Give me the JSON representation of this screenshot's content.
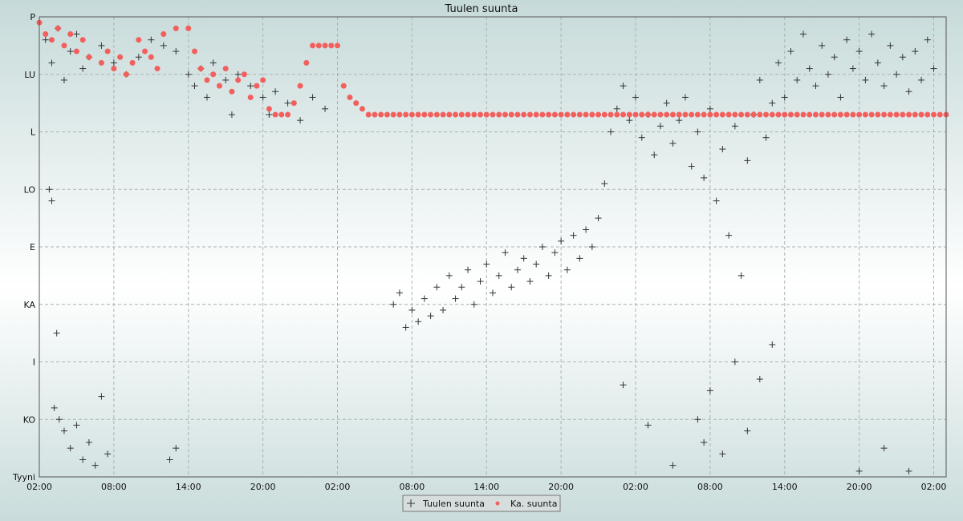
{
  "chart_data": {
    "type": "scatter",
    "title": "Tuulen suunta",
    "y_categories": [
      "Tyyni",
      "KO",
      "I",
      "KA",
      "E",
      "LO",
      "L",
      "LU",
      "P"
    ],
    "x_tick_labels": [
      "02:00",
      "08:00",
      "14:00",
      "20:00",
      "02:00",
      "08:00",
      "14:00",
      "20:00",
      "02:00",
      "08:00",
      "14:00",
      "20:00",
      "02:00"
    ],
    "x_tick_hours": [
      0,
      6,
      12,
      18,
      24,
      30,
      36,
      42,
      48,
      54,
      60,
      66,
      72
    ],
    "x_range_hours": [
      0,
      73
    ],
    "y_range": [
      0,
      8
    ],
    "grid": true,
    "legend_position": "bottom-center",
    "series": [
      {
        "name": "Tuulen suunta",
        "marker": "cross",
        "color": "#333333",
        "points": [
          [
            0.5,
            7.6
          ],
          [
            1,
            7.2
          ],
          [
            1.5,
            7.8
          ],
          [
            2,
            6.9
          ],
          [
            2.5,
            7.4
          ],
          [
            3,
            7.7
          ],
          [
            3.5,
            7.1
          ],
          [
            4,
            7.3
          ],
          [
            5,
            7.5
          ],
          [
            6,
            7.2
          ],
          [
            7,
            7.0
          ],
          [
            8,
            7.3
          ],
          [
            9,
            7.6
          ],
          [
            10,
            7.5
          ],
          [
            11,
            7.4
          ],
          [
            12,
            7.0
          ],
          [
            12.5,
            6.8
          ],
          [
            13,
            7.1
          ],
          [
            13.5,
            6.6
          ],
          [
            14,
            7.2
          ],
          [
            15,
            6.9
          ],
          [
            15.5,
            6.3
          ],
          [
            16,
            7.0
          ],
          [
            17,
            6.8
          ],
          [
            18,
            6.6
          ],
          [
            18.5,
            6.3
          ],
          [
            19,
            6.7
          ],
          [
            20,
            6.5
          ],
          [
            21,
            6.2
          ],
          [
            22,
            6.6
          ],
          [
            23,
            6.4
          ],
          [
            0.8,
            5.0
          ],
          [
            1,
            4.8
          ],
          [
            1.4,
            2.5
          ],
          [
            1.2,
            1.2
          ],
          [
            1.6,
            1.0
          ],
          [
            2,
            0.8
          ],
          [
            2.5,
            0.5
          ],
          [
            3,
            0.9
          ],
          [
            3.5,
            0.3
          ],
          [
            4,
            0.6
          ],
          [
            4.5,
            0.2
          ],
          [
            5,
            1.4
          ],
          [
            5.5,
            0.4
          ],
          [
            10.5,
            0.3
          ],
          [
            11,
            0.5
          ],
          [
            28.5,
            3.0
          ],
          [
            29,
            3.2
          ],
          [
            29.5,
            2.6
          ],
          [
            30,
            2.9
          ],
          [
            30.5,
            2.7
          ],
          [
            31,
            3.1
          ],
          [
            31.5,
            2.8
          ],
          [
            32,
            3.3
          ],
          [
            32.5,
            2.9
          ],
          [
            33,
            3.5
          ],
          [
            33.5,
            3.1
          ],
          [
            34,
            3.3
          ],
          [
            34.5,
            3.6
          ],
          [
            35,
            3.0
          ],
          [
            35.5,
            3.4
          ],
          [
            36,
            3.7
          ],
          [
            36.5,
            3.2
          ],
          [
            37,
            3.5
          ],
          [
            37.5,
            3.9
          ],
          [
            38,
            3.3
          ],
          [
            38.5,
            3.6
          ],
          [
            39,
            3.8
          ],
          [
            39.5,
            3.4
          ],
          [
            40,
            3.7
          ],
          [
            40.5,
            4.0
          ],
          [
            41,
            3.5
          ],
          [
            41.5,
            3.9
          ],
          [
            42,
            4.1
          ],
          [
            42.5,
            3.6
          ],
          [
            43,
            4.2
          ],
          [
            43.5,
            3.8
          ],
          [
            44,
            4.3
          ],
          [
            44.5,
            4.0
          ],
          [
            45,
            4.5
          ],
          [
            45.5,
            5.1
          ],
          [
            46,
            6.0
          ],
          [
            46.5,
            6.4
          ],
          [
            47,
            6.8
          ],
          [
            47.5,
            6.2
          ],
          [
            48,
            6.6
          ],
          [
            48.5,
            5.9
          ],
          [
            49,
            6.3
          ],
          [
            49.5,
            5.6
          ],
          [
            50,
            6.1
          ],
          [
            50.5,
            6.5
          ],
          [
            51,
            5.8
          ],
          [
            51.5,
            6.2
          ],
          [
            52,
            6.6
          ],
          [
            52.5,
            5.4
          ],
          [
            53,
            6.0
          ],
          [
            53.5,
            5.2
          ],
          [
            54,
            6.4
          ],
          [
            54.5,
            4.8
          ],
          [
            55,
            5.7
          ],
          [
            55.5,
            4.2
          ],
          [
            56,
            6.1
          ],
          [
            56.5,
            3.5
          ],
          [
            57,
            5.5
          ],
          [
            57.5,
            6.3
          ],
          [
            58,
            6.9
          ],
          [
            58.5,
            5.9
          ],
          [
            59,
            6.5
          ],
          [
            59.5,
            7.2
          ],
          [
            60,
            6.6
          ],
          [
            60.5,
            7.4
          ],
          [
            61,
            6.9
          ],
          [
            61.5,
            7.7
          ],
          [
            62,
            7.1
          ],
          [
            62.5,
            6.8
          ],
          [
            63,
            7.5
          ],
          [
            63.5,
            7.0
          ],
          [
            64,
            7.3
          ],
          [
            64.5,
            6.6
          ],
          [
            65,
            7.6
          ],
          [
            65.5,
            7.1
          ],
          [
            66,
            7.4
          ],
          [
            66.5,
            6.9
          ],
          [
            67,
            7.7
          ],
          [
            67.5,
            7.2
          ],
          [
            68,
            6.8
          ],
          [
            68.5,
            7.5
          ],
          [
            69,
            7.0
          ],
          [
            69.5,
            7.3
          ],
          [
            70,
            6.7
          ],
          [
            70.5,
            7.4
          ],
          [
            71,
            6.9
          ],
          [
            71.5,
            7.6
          ],
          [
            72,
            7.1
          ],
          [
            53,
            1.0
          ],
          [
            53.5,
            0.6
          ],
          [
            54,
            1.5
          ],
          [
            55,
            0.4
          ],
          [
            56,
            2.0
          ],
          [
            57,
            0.8
          ],
          [
            58,
            1.7
          ],
          [
            59,
            2.3
          ],
          [
            51,
            0.2
          ],
          [
            49,
            0.9
          ],
          [
            47,
            1.6
          ],
          [
            66,
            0.1
          ],
          [
            68,
            0.5
          ],
          [
            70,
            0.1
          ]
        ]
      },
      {
        "name": "Ka. suunta",
        "marker": "dot",
        "color": "#f2605d",
        "points": [
          [
            0,
            7.9
          ],
          [
            0.5,
            7.7
          ],
          [
            1,
            7.6
          ],
          [
            1.5,
            7.8
          ],
          [
            2,
            7.5
          ],
          [
            2.5,
            7.7
          ],
          [
            3,
            7.4
          ],
          [
            3.5,
            7.6
          ],
          [
            4,
            7.3
          ],
          [
            5,
            7.2
          ],
          [
            5.5,
            7.4
          ],
          [
            6,
            7.1
          ],
          [
            6.5,
            7.3
          ],
          [
            7,
            7.0
          ],
          [
            7.5,
            7.2
          ],
          [
            8,
            7.6
          ],
          [
            8.5,
            7.4
          ],
          [
            9,
            7.3
          ],
          [
            9.5,
            7.1
          ],
          [
            10,
            7.7
          ],
          [
            11,
            7.8
          ],
          [
            12,
            7.8
          ],
          [
            12.5,
            7.4
          ],
          [
            13,
            7.1
          ],
          [
            13.5,
            6.9
          ],
          [
            14,
            7.0
          ],
          [
            14.5,
            6.8
          ],
          [
            15,
            7.1
          ],
          [
            15.5,
            6.7
          ],
          [
            16,
            6.9
          ],
          [
            16.5,
            7.0
          ],
          [
            17,
            6.6
          ],
          [
            17.5,
            6.8
          ],
          [
            18,
            6.9
          ],
          [
            18.5,
            6.4
          ],
          [
            19,
            6.3
          ],
          [
            19.5,
            6.3
          ],
          [
            20,
            6.3
          ],
          [
            20.5,
            6.5
          ],
          [
            21,
            6.8
          ],
          [
            21.5,
            7.2
          ],
          [
            22,
            7.5
          ],
          [
            22.5,
            7.5
          ],
          [
            23,
            7.5
          ],
          [
            23.5,
            7.5
          ],
          [
            24,
            7.5
          ],
          [
            24.5,
            6.8
          ],
          [
            25,
            6.6
          ],
          [
            25.5,
            6.5
          ],
          [
            26,
            6.4
          ],
          [
            26.5,
            6.3
          ],
          [
            27,
            6.3
          ],
          [
            27.5,
            6.3
          ],
          [
            28,
            6.3
          ],
          [
            28.5,
            6.3
          ],
          [
            29,
            6.3
          ],
          [
            29.5,
            6.3
          ],
          [
            30,
            6.3
          ],
          [
            30.5,
            6.3
          ],
          [
            31,
            6.3
          ],
          [
            31.5,
            6.3
          ],
          [
            32,
            6.3
          ],
          [
            32.5,
            6.3
          ],
          [
            33,
            6.3
          ],
          [
            33.5,
            6.3
          ],
          [
            34,
            6.3
          ],
          [
            34.5,
            6.3
          ],
          [
            35,
            6.3
          ],
          [
            35.5,
            6.3
          ],
          [
            36,
            6.3
          ],
          [
            36.5,
            6.3
          ],
          [
            37,
            6.3
          ],
          [
            37.5,
            6.3
          ],
          [
            38,
            6.3
          ],
          [
            38.5,
            6.3
          ],
          [
            39,
            6.3
          ],
          [
            39.5,
            6.3
          ],
          [
            40,
            6.3
          ],
          [
            40.5,
            6.3
          ],
          [
            41,
            6.3
          ],
          [
            41.5,
            6.3
          ],
          [
            42,
            6.3
          ],
          [
            42.5,
            6.3
          ],
          [
            43,
            6.3
          ],
          [
            43.5,
            6.3
          ],
          [
            44,
            6.3
          ],
          [
            44.5,
            6.3
          ],
          [
            45,
            6.3
          ],
          [
            45.5,
            6.3
          ],
          [
            46,
            6.3
          ],
          [
            46.5,
            6.3
          ],
          [
            47,
            6.3
          ],
          [
            47.5,
            6.3
          ],
          [
            48,
            6.3
          ],
          [
            48.5,
            6.3
          ],
          [
            49,
            6.3
          ],
          [
            49.5,
            6.3
          ],
          [
            50,
            6.3
          ],
          [
            50.5,
            6.3
          ],
          [
            51,
            6.3
          ],
          [
            51.5,
            6.3
          ],
          [
            52,
            6.3
          ],
          [
            52.5,
            6.3
          ],
          [
            53,
            6.3
          ],
          [
            53.5,
            6.3
          ],
          [
            54,
            6.3
          ],
          [
            54.5,
            6.3
          ],
          [
            55,
            6.3
          ],
          [
            55.5,
            6.3
          ],
          [
            56,
            6.3
          ],
          [
            56.5,
            6.3
          ],
          [
            57,
            6.3
          ],
          [
            57.5,
            6.3
          ],
          [
            58,
            6.3
          ],
          [
            58.5,
            6.3
          ],
          [
            59,
            6.3
          ],
          [
            59.5,
            6.3
          ],
          [
            60,
            6.3
          ],
          [
            60.5,
            6.3
          ],
          [
            61,
            6.3
          ],
          [
            61.5,
            6.3
          ],
          [
            62,
            6.3
          ],
          [
            62.5,
            6.3
          ],
          [
            63,
            6.3
          ],
          [
            63.5,
            6.3
          ],
          [
            64,
            6.3
          ],
          [
            64.5,
            6.3
          ],
          [
            65,
            6.3
          ],
          [
            65.5,
            6.3
          ],
          [
            66,
            6.3
          ],
          [
            66.5,
            6.3
          ],
          [
            67,
            6.3
          ],
          [
            67.5,
            6.3
          ],
          [
            68,
            6.3
          ],
          [
            68.5,
            6.3
          ],
          [
            69,
            6.3
          ],
          [
            69.5,
            6.3
          ],
          [
            70,
            6.3
          ],
          [
            70.5,
            6.3
          ],
          [
            71,
            6.3
          ],
          [
            71.5,
            6.3
          ],
          [
            72,
            6.3
          ],
          [
            72.5,
            6.3
          ],
          [
            73,
            6.3
          ]
        ]
      }
    ],
    "legend": [
      "Tuulen suunta",
      "Ka. suunta"
    ]
  }
}
